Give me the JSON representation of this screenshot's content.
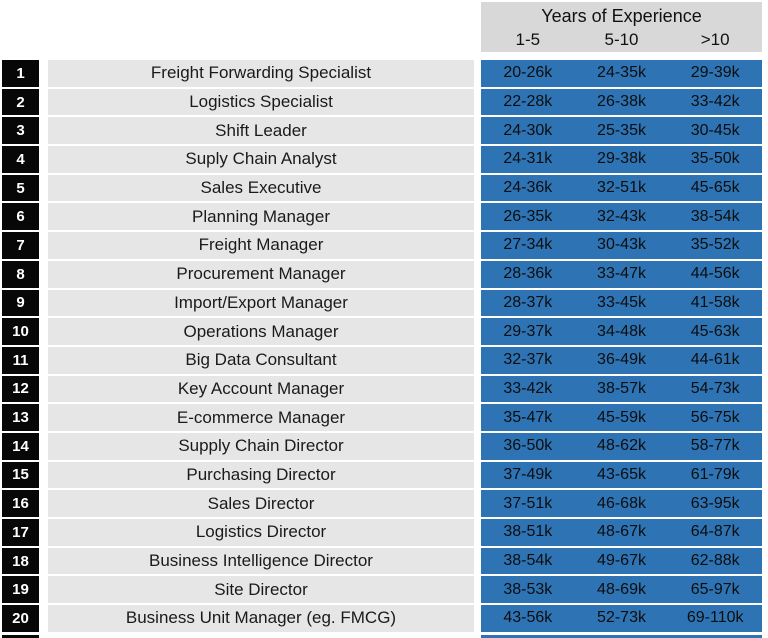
{
  "colors": {
    "salary_blue": "#2E74B5",
    "header_gray": "#D8D8D8",
    "row_gray": "#E7E6E6",
    "rank_black": "#070707",
    "rank_text": "#FFFFFF",
    "text": "#111111"
  },
  "header": {
    "title": "Years of Experience",
    "columns": [
      "1-5",
      "5-10",
      ">10"
    ]
  },
  "chart_data": {
    "type": "table",
    "title": "Years of Experience",
    "experience_columns": [
      "1-5",
      "5-10",
      ">10"
    ],
    "salary_unit": "k",
    "rows": [
      {
        "rank": "1",
        "role": "Freight Forwarding Specialist",
        "salaries": [
          "20-26k",
          "24-35k",
          "29-39k"
        ]
      },
      {
        "rank": "2",
        "role": "Logistics Specialist",
        "salaries": [
          "22-28k",
          "26-38k",
          "33-42k"
        ]
      },
      {
        "rank": "3",
        "role": "Shift Leader",
        "salaries": [
          "24-30k",
          "25-35k",
          "30-45k"
        ]
      },
      {
        "rank": "4",
        "role": "Suply Chain Analyst",
        "salaries": [
          "24-31k",
          "29-38k",
          "35-50k"
        ]
      },
      {
        "rank": "5",
        "role": "Sales Executive",
        "salaries": [
          "24-36k",
          "32-51k",
          "45-65k"
        ]
      },
      {
        "rank": "6",
        "role": "Planning Manager",
        "salaries": [
          "26-35k",
          "32-43k",
          "38-54k"
        ]
      },
      {
        "rank": "7",
        "role": "Freight Manager",
        "salaries": [
          "27-34k",
          "30-43k",
          "35-52k"
        ]
      },
      {
        "rank": "8",
        "role": "Procurement Manager",
        "salaries": [
          "28-36k",
          "33-47k",
          "44-56k"
        ]
      },
      {
        "rank": "9",
        "role": "Import/Export Manager",
        "salaries": [
          "28-37k",
          "33-45k",
          "41-58k"
        ]
      },
      {
        "rank": "10",
        "role": "Operations Manager",
        "salaries": [
          "29-37k",
          "34-48k",
          "45-63k"
        ]
      },
      {
        "rank": "11",
        "role": "Big Data Consultant",
        "salaries": [
          "32-37k",
          "36-49k",
          "44-61k"
        ]
      },
      {
        "rank": "12",
        "role": "Key Account Manager",
        "salaries": [
          "33-42k",
          "38-57k",
          "54-73k"
        ]
      },
      {
        "rank": "13",
        "role": "E-commerce Manager",
        "salaries": [
          "35-47k",
          "45-59k",
          "56-75k"
        ]
      },
      {
        "rank": "14",
        "role": "Supply Chain Director",
        "salaries": [
          "36-50k",
          "48-62k",
          "58-77k"
        ]
      },
      {
        "rank": "15",
        "role": "Purchasing Director",
        "salaries": [
          "37-49k",
          "43-65k",
          "61-79k"
        ]
      },
      {
        "rank": "16",
        "role": "Sales Director",
        "salaries": [
          "37-51k",
          "46-68k",
          "63-95k"
        ]
      },
      {
        "rank": "17",
        "role": "Logistics Director",
        "salaries": [
          "38-51k",
          "48-67k",
          "64-87k"
        ]
      },
      {
        "rank": "18",
        "role": "Business Intelligence Director",
        "salaries": [
          "38-54k",
          "49-67k",
          "62-88k"
        ]
      },
      {
        "rank": "19",
        "role": "Site Director",
        "salaries": [
          "38-53k",
          "48-69k",
          "65-97k"
        ]
      },
      {
        "rank": "20",
        "role": "Business Unit Manager (eg. FMCG)",
        "salaries": [
          "43-56k",
          "52-73k",
          "69-110k"
        ]
      }
    ]
  }
}
